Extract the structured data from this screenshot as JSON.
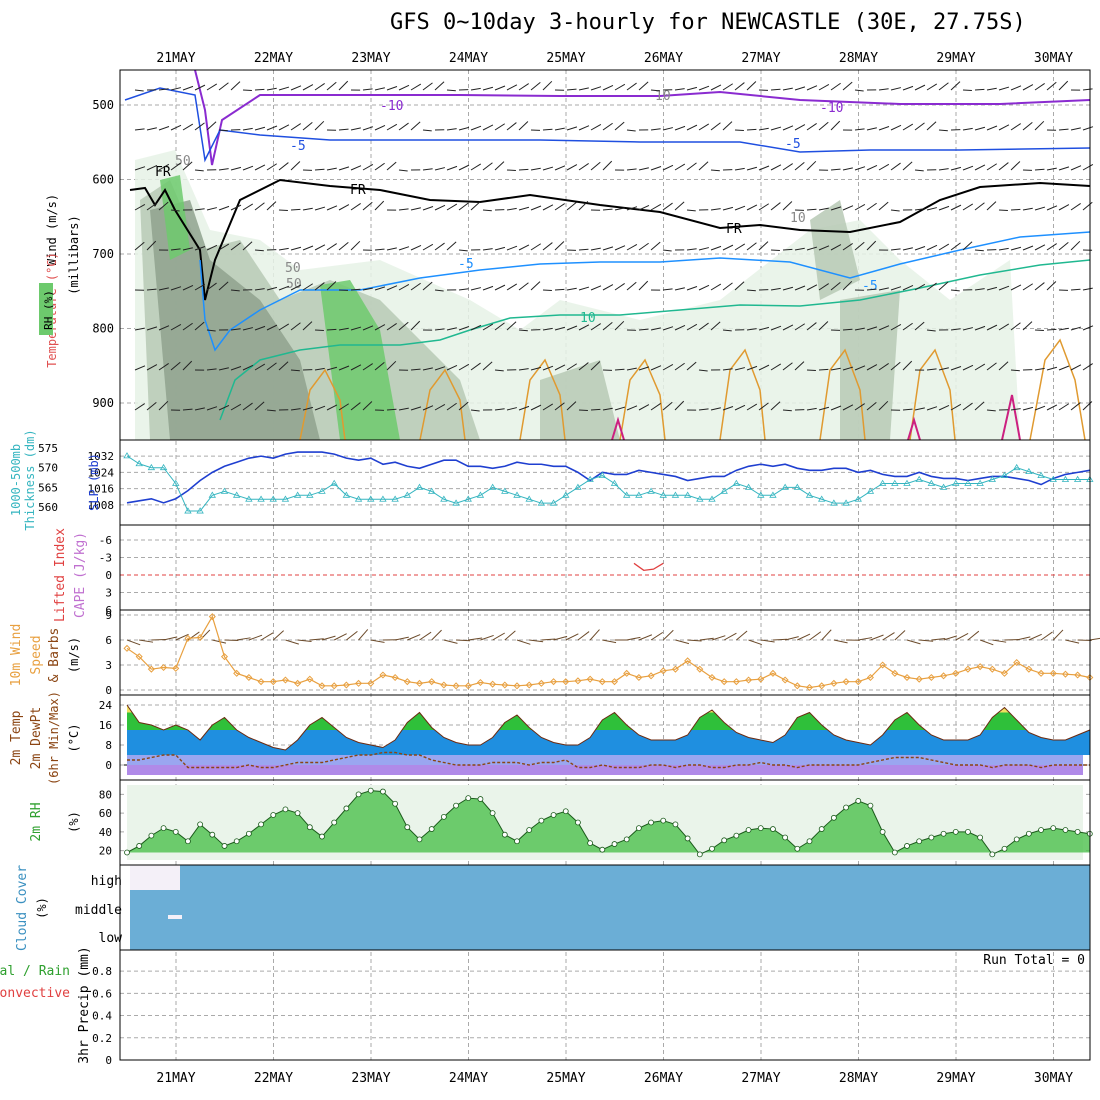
{
  "title": "GFS 0~10day 3-hourly for NEWCASTLE (30E, 27.75S)",
  "dates": [
    "21MAY",
    "22MAY",
    "23MAY",
    "24MAY",
    "25MAY",
    "26MAY",
    "27MAY",
    "28MAY",
    "29MAY",
    "30MAY"
  ],
  "colors": {
    "frame": "#000000",
    "grid": "#aaaaaa",
    "rh_light": "#e6f2e6",
    "rh_mid": "#b7c9b5",
    "rh_dark": "#8fa28e",
    "rh_green": "#6dca6d",
    "slp": "#1f3fd0",
    "thickness": "#35b5c0",
    "wind_speed": "#e8a040",
    "barb": "#222222",
    "temp_fill_warm": "#2fc03a",
    "temp_fill_cool": "#1f8fe0",
    "temp_fill_cold": "#9aa6f0",
    "temp_fill_below0": "#b08ae8",
    "dewpoint": "#8b4513",
    "rh2m_fill": "#4cc04c",
    "cloud_fill": "#6baed6",
    "lifted_zero": "#e04040"
  },
  "panels": {
    "profile": {
      "left_labels": [
        "Wind (m/s)",
        "Temperature (°C)",
        "RH (%)"
      ],
      "ylabel": "(millibars)",
      "yticks": [
        "500",
        "600",
        "700",
        "800",
        "900"
      ],
      "contour_labels": [
        "-10",
        "-10",
        "-5",
        "-5",
        "FR",
        "FR",
        "FR",
        "-5",
        "-5",
        "10",
        "50",
        "50",
        "50",
        "10",
        "10"
      ]
    },
    "slp": {
      "left_label_a": "1000-500mb",
      "left_label_b": "Thickness (dm)",
      "left_label_c": "SLP (mb)",
      "left_ticks": [
        "575",
        "570",
        "565",
        "560"
      ],
      "right_ticks": [
        "1032",
        "1024",
        "1016",
        "1008"
      ]
    },
    "cape": {
      "label_a": "Lifted Index",
      "label_b": "CAPE (J/kg)",
      "ticks": [
        "-6",
        "-3",
        "0",
        "3",
        "6"
      ]
    },
    "wind10m": {
      "label_a": "10m Wind",
      "label_b": "Speed",
      "label_c": "& Barbs",
      "unit": "(m/s)",
      "ticks": [
        "9",
        "6",
        "3",
        "0"
      ]
    },
    "temp2m": {
      "label_a": "2m Temp",
      "label_b": "2m DewPt",
      "label_c": "(6hr Min/Max)",
      "unit": "(°C)",
      "ticks": [
        "24",
        "16",
        "8",
        "0"
      ]
    },
    "rh2m": {
      "label": "2m RH",
      "unit": "(%)",
      "ticks": [
        "80",
        "60",
        "40",
        "20"
      ]
    },
    "cloud": {
      "label": "Cloud Cover",
      "unit": "(%)",
      "levels": [
        "high",
        "middle",
        "low"
      ]
    },
    "precip": {
      "label_a": "Total / Rain",
      "label_b": "Convective",
      "label_c": "3hr Precip (mm)",
      "ticks": [
        "0.8",
        "0.6",
        "0.4",
        "0.2",
        "0"
      ],
      "run_total": "Run Total = 0"
    }
  },
  "chart_data": [
    {
      "type": "line",
      "name": "SLP (mb)",
      "ylim": [
        1004,
        1036
      ],
      "x_days": [
        0.0,
        0.125,
        0.25,
        0.375,
        0.5,
        0.625,
        0.75,
        0.875,
        1.0,
        1.125,
        1.25,
        1.375,
        1.5,
        1.625,
        1.75,
        1.875,
        2.0,
        2.125,
        2.25,
        2.375,
        2.5,
        2.625,
        2.75,
        2.875,
        3.0,
        3.125,
        3.25,
        3.375,
        3.5,
        3.625,
        3.75,
        3.875,
        4.0,
        4.125,
        4.25,
        4.375,
        4.5,
        4.625,
        4.75,
        4.875,
        5.0,
        5.125,
        5.25,
        5.375,
        5.5,
        5.625,
        5.75,
        5.875,
        6.0,
        6.125,
        6.25,
        6.375,
        6.5,
        6.625,
        6.75,
        6.875,
        7.0,
        7.125,
        7.25,
        7.375,
        7.5,
        7.625,
        7.75,
        7.875,
        8.0,
        8.125,
        8.25,
        8.375,
        8.5,
        8.625,
        8.75,
        8.875,
        9.0,
        9.125,
        9.25,
        9.375,
        9.5,
        9.625,
        9.75,
        9.875
      ],
      "values": [
        1009,
        1010,
        1011,
        1009,
        1011,
        1015,
        1020,
        1024,
        1027,
        1029,
        1031,
        1032,
        1031,
        1033,
        1034,
        1034,
        1034,
        1033,
        1031,
        1030,
        1031,
        1028,
        1029,
        1027,
        1026,
        1028,
        1030,
        1030,
        1027,
        1027,
        1026,
        1027,
        1029,
        1028,
        1028,
        1027,
        1027,
        1024,
        1020,
        1024,
        1023,
        1023,
        1025,
        1024,
        1023,
        1022,
        1020,
        1021,
        1022,
        1022,
        1025,
        1027,
        1028,
        1027,
        1028,
        1026,
        1025,
        1025,
        1026,
        1026,
        1024,
        1025,
        1023,
        1022,
        1022,
        1024,
        1022,
        1021,
        1021,
        1020,
        1021,
        1022,
        1022,
        1021,
        1020,
        1018,
        1021,
        1023,
        1024,
        1025
      ]
    },
    {
      "type": "line",
      "name": "1000-500mb Thickness (dm)",
      "ylim": [
        558,
        575
      ],
      "x_days": [
        0.0,
        0.125,
        0.25,
        0.375,
        0.5,
        0.625,
        0.75,
        0.875,
        1.0,
        1.125,
        1.25,
        1.375,
        1.5,
        1.625,
        1.75,
        1.875,
        2.0,
        2.125,
        2.25,
        2.375,
        2.5,
        2.625,
        2.75,
        2.875,
        3.0,
        3.125,
        3.25,
        3.375,
        3.5,
        3.625,
        3.75,
        3.875,
        4.0,
        4.125,
        4.25,
        4.375,
        4.5,
        4.625,
        4.75,
        4.875,
        5.0,
        5.125,
        5.25,
        5.375,
        5.5,
        5.625,
        5.75,
        5.875,
        6.0,
        6.125,
        6.25,
        6.375,
        6.5,
        6.625,
        6.75,
        6.875,
        7.0,
        7.125,
        7.25,
        7.375,
        7.5,
        7.625,
        7.75,
        7.875,
        8.0,
        8.125,
        8.25,
        8.375,
        8.5,
        8.625,
        8.75,
        8.875,
        9.0,
        9.125,
        9.25,
        9.375,
        9.5,
        9.625,
        9.75,
        9.875
      ],
      "values": [
        573,
        571,
        570,
        570,
        566,
        559,
        559,
        563,
        564,
        563,
        562,
        562,
        562,
        562,
        563,
        563,
        564,
        566,
        563,
        562,
        562,
        562,
        562,
        563,
        565,
        564,
        562,
        561,
        562,
        563,
        565,
        564,
        563,
        562,
        561,
        561,
        563,
        565,
        567,
        568,
        566,
        563,
        563,
        564,
        563,
        563,
        563,
        562,
        562,
        564,
        566,
        565,
        563,
        563,
        565,
        565,
        563,
        562,
        561,
        561,
        562,
        564,
        566,
        566,
        566,
        567,
        566,
        565,
        566,
        566,
        566,
        567,
        568,
        570,
        569,
        568,
        567,
        567,
        567,
        567
      ]
    },
    {
      "type": "line",
      "name": "10m Wind Speed (m/s)",
      "ylim": [
        0,
        9
      ],
      "x_days": [
        0.0,
        0.125,
        0.25,
        0.375,
        0.5,
        0.625,
        0.75,
        0.875,
        1.0,
        1.125,
        1.25,
        1.375,
        1.5,
        1.625,
        1.75,
        1.875,
        2.0,
        2.125,
        2.25,
        2.375,
        2.5,
        2.625,
        2.75,
        2.875,
        3.0,
        3.125,
        3.25,
        3.375,
        3.5,
        3.625,
        3.75,
        3.875,
        4.0,
        4.125,
        4.25,
        4.375,
        4.5,
        4.625,
        4.75,
        4.875,
        5.0,
        5.125,
        5.25,
        5.375,
        5.5,
        5.625,
        5.75,
        5.875,
        6.0,
        6.125,
        6.25,
        6.375,
        6.5,
        6.625,
        6.75,
        6.875,
        7.0,
        7.125,
        7.25,
        7.375,
        7.5,
        7.625,
        7.75,
        7.875,
        8.0,
        8.125,
        8.25,
        8.375,
        8.5,
        8.625,
        8.75,
        8.875,
        9.0,
        9.125,
        9.25,
        9.375,
        9.5,
        9.625,
        9.75,
        9.875
      ],
      "values": [
        5.0,
        4.0,
        2.5,
        2.7,
        2.6,
        6.2,
        6.3,
        8.8,
        4.0,
        2.0,
        1.5,
        1.0,
        1.0,
        1.2,
        0.8,
        1.3,
        0.5,
        0.5,
        0.6,
        0.8,
        0.8,
        1.8,
        1.5,
        1.0,
        0.8,
        1.0,
        0.6,
        0.5,
        0.5,
        0.9,
        0.7,
        0.6,
        0.5,
        0.6,
        0.8,
        1.0,
        1.0,
        1.1,
        1.3,
        1.0,
        1.0,
        2.0,
        1.5,
        1.7,
        2.3,
        2.5,
        3.5,
        2.5,
        1.5,
        1.0,
        1.0,
        1.2,
        1.3,
        2.0,
        1.2,
        0.5,
        0.3,
        0.5,
        0.8,
        1.0,
        1.0,
        1.5,
        3.0,
        2.0,
        1.5,
        1.3,
        1.5,
        1.7,
        2.0,
        2.5,
        2.8,
        2.5,
        2.0,
        3.3,
        2.5,
        2.0,
        2.0,
        1.9,
        1.8,
        1.5
      ]
    },
    {
      "type": "area",
      "name": "2m Temp (°C)",
      "ylim": [
        -4,
        26
      ],
      "x_days": [
        0.0,
        0.125,
        0.25,
        0.375,
        0.5,
        0.625,
        0.75,
        0.875,
        1.0,
        1.125,
        1.25,
        1.375,
        1.5,
        1.625,
        1.75,
        1.875,
        2.0,
        2.125,
        2.25,
        2.375,
        2.5,
        2.625,
        2.75,
        2.875,
        3.0,
        3.125,
        3.25,
        3.375,
        3.5,
        3.625,
        3.75,
        3.875,
        4.0,
        4.125,
        4.25,
        4.375,
        4.5,
        4.625,
        4.75,
        4.875,
        5.0,
        5.125,
        5.25,
        5.375,
        5.5,
        5.625,
        5.75,
        5.875,
        6.0,
        6.125,
        6.25,
        6.375,
        6.5,
        6.625,
        6.75,
        6.875,
        7.0,
        7.125,
        7.25,
        7.375,
        7.5,
        7.625,
        7.75,
        7.875,
        8.0,
        8.125,
        8.25,
        8.375,
        8.5,
        8.625,
        8.75,
        8.875,
        9.0,
        9.125,
        9.25,
        9.375,
        9.5,
        9.625,
        9.75,
        9.875
      ],
      "values": [
        24,
        17,
        16,
        14,
        16,
        14,
        10,
        16,
        19,
        14,
        11,
        9,
        7,
        6,
        10,
        16,
        19,
        15,
        11,
        9,
        8,
        7,
        10,
        17,
        21,
        15,
        11,
        9,
        8,
        8,
        11,
        17,
        20,
        15,
        11,
        9,
        8,
        8,
        11,
        18,
        21,
        16,
        12,
        10,
        10,
        10,
        12,
        19,
        22,
        17,
        13,
        11,
        10,
        9,
        12,
        19,
        21,
        16,
        12,
        10,
        9,
        8,
        12,
        18,
        21,
        16,
        12,
        10,
        10,
        10,
        12,
        19,
        23,
        18,
        13,
        11,
        10,
        10,
        12,
        14
      ]
    },
    {
      "type": "line",
      "name": "2m DewPt (°C)",
      "ylim": [
        -4,
        26
      ],
      "x_days": [
        0.0,
        0.125,
        0.25,
        0.375,
        0.5,
        0.625,
        0.75,
        0.875,
        1.0,
        1.125,
        1.25,
        1.375,
        1.5,
        1.625,
        1.75,
        1.875,
        2.0,
        2.125,
        2.25,
        2.375,
        2.5,
        2.625,
        2.75,
        2.875,
        3.0,
        3.125,
        3.25,
        3.375,
        3.5,
        3.625,
        3.75,
        3.875,
        4.0,
        4.125,
        4.25,
        4.375,
        4.5,
        4.625,
        4.75,
        4.875,
        5.0,
        5.125,
        5.25,
        5.375,
        5.5,
        5.625,
        5.75,
        5.875,
        6.0,
        6.125,
        6.25,
        6.375,
        6.5,
        6.625,
        6.75,
        6.875,
        7.0,
        7.125,
        7.25,
        7.375,
        7.5,
        7.625,
        7.75,
        7.875,
        8.0,
        8.125,
        8.25,
        8.375,
        8.5,
        8.625,
        8.75,
        8.875,
        9.0,
        9.125,
        9.25,
        9.375,
        9.5,
        9.625,
        9.75,
        9.875
      ],
      "values": [
        2,
        2,
        3,
        4,
        4,
        -1,
        -1,
        -1,
        -1,
        -1,
        0,
        -1,
        -1,
        0,
        1,
        1,
        1,
        2,
        3,
        4,
        4,
        5,
        5,
        4,
        4,
        2,
        1,
        0,
        0,
        0,
        1,
        1,
        1,
        0,
        1,
        1,
        2,
        -1,
        -1,
        0,
        -1,
        -1,
        -1,
        0,
        0,
        -1,
        0,
        0,
        -1,
        -1,
        0,
        0,
        1,
        0,
        0,
        -1,
        0,
        0,
        0,
        0,
        0,
        1,
        2,
        3,
        3,
        3,
        2,
        1,
        0,
        0,
        0,
        -1,
        0,
        0,
        0,
        -1,
        0,
        0,
        0,
        0
      ]
    },
    {
      "type": "area",
      "name": "2m RH (%)",
      "ylim": [
        10,
        90
      ],
      "x_days": [
        0.0,
        0.125,
        0.25,
        0.375,
        0.5,
        0.625,
        0.75,
        0.875,
        1.0,
        1.125,
        1.25,
        1.375,
        1.5,
        1.625,
        1.75,
        1.875,
        2.0,
        2.125,
        2.25,
        2.375,
        2.5,
        2.625,
        2.75,
        2.875,
        3.0,
        3.125,
        3.25,
        3.375,
        3.5,
        3.625,
        3.75,
        3.875,
        4.0,
        4.125,
        4.25,
        4.375,
        4.5,
        4.625,
        4.75,
        4.875,
        5.0,
        5.125,
        5.25,
        5.375,
        5.5,
        5.625,
        5.75,
        5.875,
        6.0,
        6.125,
        6.25,
        6.375,
        6.5,
        6.625,
        6.75,
        6.875,
        7.0,
        7.125,
        7.25,
        7.375,
        7.5,
        7.625,
        7.75,
        7.875,
        8.0,
        8.125,
        8.25,
        8.375,
        8.5,
        8.625,
        8.75,
        8.875,
        9.0,
        9.125,
        9.25,
        9.375,
        9.5,
        9.625,
        9.75,
        9.875
      ],
      "values": [
        18,
        25,
        36,
        44,
        40,
        30,
        48,
        37,
        25,
        30,
        38,
        48,
        58,
        64,
        60,
        45,
        35,
        50,
        65,
        80,
        84,
        83,
        70,
        45,
        32,
        43,
        56,
        68,
        76,
        75,
        60,
        37,
        30,
        42,
        52,
        58,
        62,
        50,
        28,
        21,
        27,
        32,
        44,
        50,
        52,
        48,
        33,
        16,
        22,
        31,
        36,
        42,
        44,
        43,
        34,
        22,
        30,
        43,
        55,
        66,
        73,
        68,
        40,
        18,
        25,
        30,
        34,
        38,
        40,
        40,
        34,
        16,
        22,
        32,
        38,
        42,
        44,
        42,
        40,
        38
      ]
    },
    {
      "type": "line",
      "name": "CAPE (J/kg)",
      "ylim": [
        -6,
        6
      ],
      "x_days": [
        5.2,
        5.3,
        5.4,
        5.5
      ],
      "values": [
        2.0,
        0.8,
        1.0,
        2.0
      ]
    }
  ]
}
